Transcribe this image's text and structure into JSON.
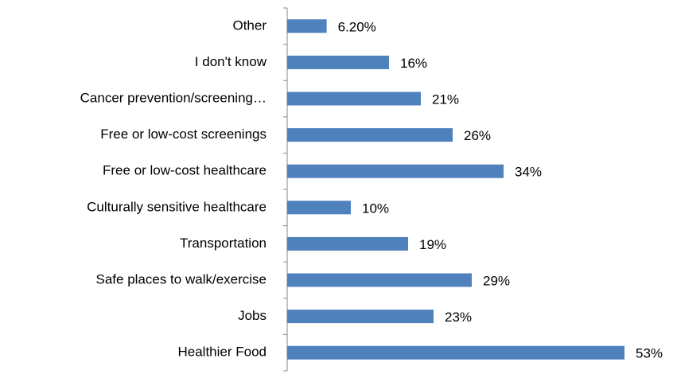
{
  "chart_data": {
    "type": "bar",
    "orientation": "horizontal",
    "categories": [
      "Other",
      "I don't know",
      "Cancer prevention/screening…",
      "Free or low-cost screenings",
      "Free or low-cost healthcare",
      "Culturally sensitive healthcare",
      "Transportation",
      "Safe places to walk/exercise",
      "Jobs",
      "Healthier Food"
    ],
    "values": [
      6.2,
      16,
      21,
      26,
      34,
      10,
      19,
      29,
      23,
      53
    ],
    "value_labels": [
      "6.20%",
      "16%",
      "21%",
      "26%",
      "34%",
      "10%",
      "19%",
      "29%",
      "23%",
      "53%"
    ],
    "color": "#4f81bd"
  }
}
